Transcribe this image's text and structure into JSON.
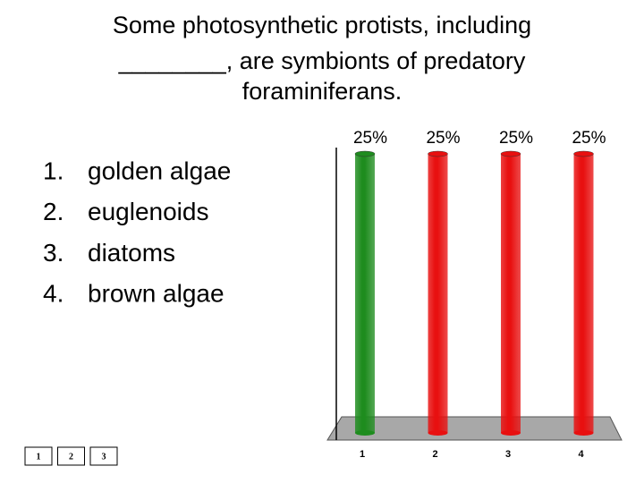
{
  "question": [
    "Some photosynthetic protists, including",
    "________, are symbionts of predatory",
    "foraminiferans."
  ],
  "options": [
    {
      "number": "1.",
      "text": "golden algae"
    },
    {
      "number": "2.",
      "text": "euglenoids"
    },
    {
      "number": "3.",
      "text": "diatoms"
    },
    {
      "number": "4.",
      "text": "brown algae"
    }
  ],
  "buttons": [
    "1",
    "2",
    "3"
  ],
  "chart_data": {
    "type": "bar",
    "categories": [
      "1",
      "2",
      "3",
      "4"
    ],
    "values": [
      25,
      25,
      25,
      25
    ],
    "value_labels": [
      "25%",
      "25%",
      "25%",
      "25%"
    ],
    "colors": [
      "#1e8c1e",
      "#e81010",
      "#e81010",
      "#e81010"
    ],
    "ylim": [
      0,
      25
    ]
  }
}
